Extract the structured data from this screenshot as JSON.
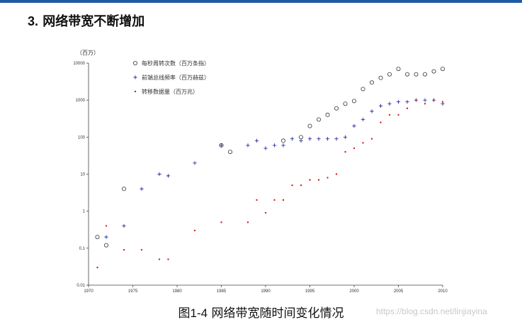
{
  "slide": {
    "section_number": "3.",
    "title": "网络带宽不断增加",
    "caption_prefix": "图",
    "caption_figure": "1-4",
    "caption_text": "网络带宽随时间变化情况",
    "watermark": "https://blog.csdn.net/linjiayina",
    "accent_color": "#1f5aa6"
  },
  "chart_data": {
    "type": "scatter",
    "title": "",
    "xlabel": "",
    "ylabel": "（百万）",
    "yscale": "log",
    "xlim": [
      1970,
      2010
    ],
    "ylim": [
      0.01,
      10000
    ],
    "xticks": [
      "1970",
      "1975",
      "1980",
      "1985",
      "1990",
      "1995",
      "2000",
      "2005",
      "2010"
    ],
    "yticks": [
      "0.01",
      "0.1",
      "1",
      "10",
      "100",
      "1000",
      "10000"
    ],
    "grid": false,
    "legend_position": "top-left",
    "series": [
      {
        "name": "每秒周转次数（百万条指）",
        "marker": "circle",
        "color": "#333333",
        "points": [
          [
            1971,
            0.2
          ],
          [
            1972,
            0.12
          ],
          [
            1974,
            4
          ],
          [
            1985,
            60
          ],
          [
            1986,
            40
          ],
          [
            1992,
            80
          ],
          [
            1994,
            100
          ],
          [
            1995,
            200
          ],
          [
            1996,
            300
          ],
          [
            1997,
            400
          ],
          [
            1998,
            600
          ],
          [
            1999,
            800
          ],
          [
            2000,
            950
          ],
          [
            2001,
            2000
          ],
          [
            2002,
            3000
          ],
          [
            2003,
            4000
          ],
          [
            2004,
            5000
          ],
          [
            2005,
            7000
          ],
          [
            2006,
            5000
          ],
          [
            2007,
            5000
          ],
          [
            2008,
            5000
          ],
          [
            2009,
            6000
          ],
          [
            2010,
            7000
          ]
        ]
      },
      {
        "name": "前端总线频率（百万赫兹）",
        "marker": "plus",
        "color": "#2a2aa8",
        "points": [
          [
            1972,
            0.2
          ],
          [
            1974,
            0.4
          ],
          [
            1976,
            4
          ],
          [
            1978,
            10
          ],
          [
            1979,
            9
          ],
          [
            1982,
            20
          ],
          [
            1985,
            60
          ],
          [
            1988,
            60
          ],
          [
            1989,
            80
          ],
          [
            1990,
            50
          ],
          [
            1991,
            60
          ],
          [
            1992,
            60
          ],
          [
            1993,
            90
          ],
          [
            1994,
            80
          ],
          [
            1995,
            90
          ],
          [
            1996,
            90
          ],
          [
            1997,
            90
          ],
          [
            1998,
            90
          ],
          [
            1999,
            100
          ],
          [
            2000,
            200
          ],
          [
            2001,
            300
          ],
          [
            2002,
            500
          ],
          [
            2003,
            700
          ],
          [
            2004,
            800
          ],
          [
            2005,
            900
          ],
          [
            2006,
            900
          ],
          [
            2007,
            1000
          ],
          [
            2008,
            1000
          ],
          [
            2009,
            1000
          ],
          [
            2010,
            800
          ]
        ]
      },
      {
        "name": "转移数据量（百万兆）",
        "marker": "dot",
        "color": "#d42020",
        "points": [
          [
            1971,
            0.03
          ],
          [
            1972,
            0.4
          ],
          [
            1974,
            0.09
          ],
          [
            1976,
            0.09
          ],
          [
            1978,
            0.05
          ],
          [
            1979,
            0.05
          ],
          [
            1982,
            0.3
          ],
          [
            1985,
            0.5
          ],
          [
            1988,
            0.5
          ],
          [
            1989,
            2
          ],
          [
            1990,
            0.9
          ],
          [
            1991,
            2
          ],
          [
            1992,
            2
          ],
          [
            1993,
            5
          ],
          [
            1994,
            5
          ],
          [
            1995,
            7
          ],
          [
            1996,
            7
          ],
          [
            1997,
            8
          ],
          [
            1998,
            10
          ],
          [
            1999,
            40
          ],
          [
            2000,
            50
          ],
          [
            2001,
            70
          ],
          [
            2002,
            90
          ],
          [
            2003,
            250
          ],
          [
            2004,
            400
          ],
          [
            2005,
            400
          ],
          [
            2006,
            600
          ],
          [
            2007,
            1000
          ],
          [
            2008,
            800
          ],
          [
            2009,
            1000
          ],
          [
            2010,
            900
          ]
        ]
      }
    ]
  }
}
